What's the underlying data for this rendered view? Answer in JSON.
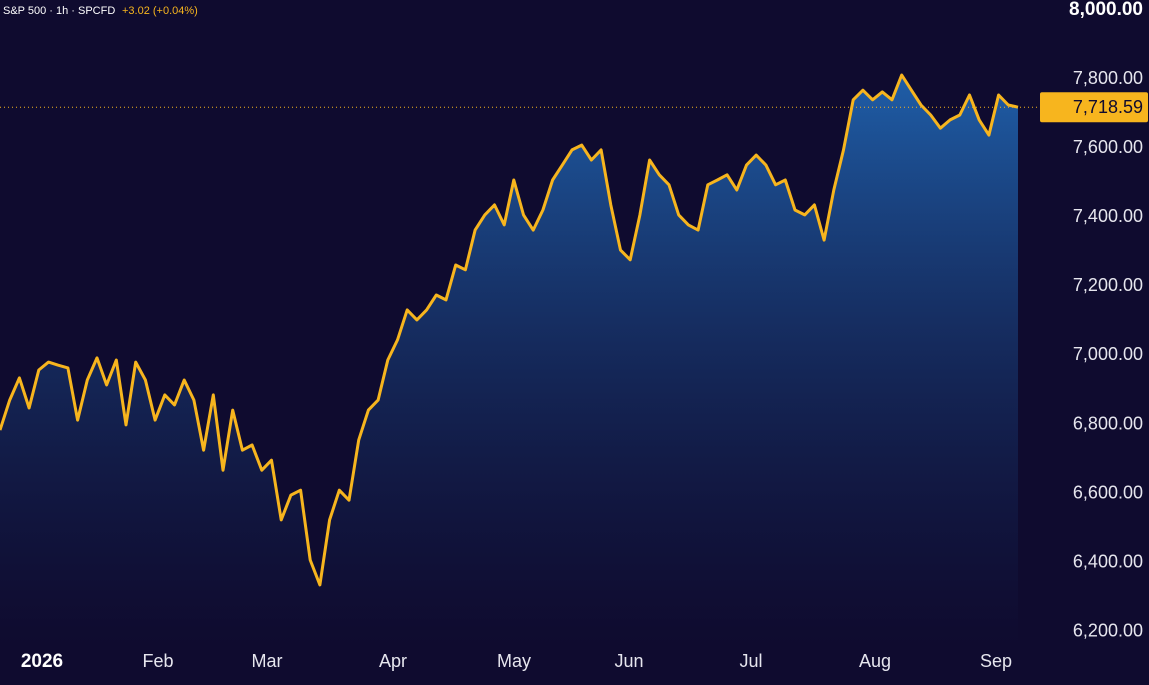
{
  "chart_data": {
    "type": "area_line",
    "title": "S&P 500 · 1h · SPCFD",
    "change": "+3.02 (+0.04%)",
    "line_color": "#f7b51e",
    "fill_color": "#1f5ea8",
    "values": [
      6784,
      6871,
      6935,
      6848,
      6958,
      6981,
      6972,
      6964,
      6813,
      6929,
      6993,
      6915,
      6987,
      6799,
      6981,
      6929,
      6813,
      6886,
      6857,
      6929,
      6871,
      6726,
      6886,
      6668,
      6842,
      6726,
      6741,
      6668,
      6697,
      6524,
      6596,
      6610,
      6408,
      6336,
      6524,
      6610,
      6581,
      6755,
      6842,
      6871,
      6987,
      7045,
      7132,
      7103,
      7132,
      7175,
      7161,
      7262,
      7248,
      7363,
      7407,
      7436,
      7378,
      7508,
      7407,
      7363,
      7421,
      7508,
      7551,
      7595,
      7609,
      7566,
      7595,
      7436,
      7305,
      7277,
      7407,
      7566,
      7523,
      7494,
      7407,
      7378,
      7363,
      7494,
      7508,
      7523,
      7479,
      7551,
      7580,
      7551,
      7494,
      7508,
      7421,
      7407,
      7436,
      7334,
      7479,
      7595,
      7740,
      7768,
      7740,
      7763,
      7740,
      7812,
      7768,
      7725,
      7696,
      7658,
      7682,
      7696,
      7754,
      7682,
      7638,
      7754,
      7725,
      7718.59
    ],
    "last_price": {
      "value": 7718.59,
      "label": "7,718.59"
    },
    "ylim": [
      6162,
      8029
    ],
    "yticks": [
      {
        "value": 6200,
        "label": "6,200.00"
      },
      {
        "value": 6400,
        "label": "6,400.00"
      },
      {
        "value": 6600,
        "label": "6,600.00"
      },
      {
        "value": 6800,
        "label": "6,800.00"
      },
      {
        "value": 7000,
        "label": "7,000.00"
      },
      {
        "value": 7200,
        "label": "7,200.00"
      },
      {
        "value": 7400,
        "label": "7,400.00"
      },
      {
        "value": 7600,
        "label": "7,600.00"
      },
      {
        "value": 7800,
        "label": "7,800.00"
      },
      {
        "value": 8000,
        "label": "8,000.00"
      }
    ],
    "xticks": [
      "2026",
      "Feb",
      "Mar",
      "Apr",
      "May",
      "Jun",
      "Jul",
      "Aug",
      "Sep"
    ]
  }
}
